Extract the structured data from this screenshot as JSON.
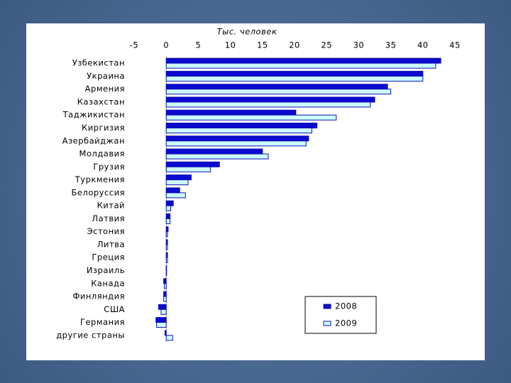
{
  "chart_data": {
    "type": "barh",
    "title": "Тыс. человек",
    "categories": [
      "Узбекистан",
      "Украина",
      "Армения",
      "Казахстан",
      "Таджикистан",
      "Киргизия",
      "Азербайджан",
      "Молдавия",
      "Грузия",
      "Туркмения",
      "Белоруссия",
      "Китай",
      "Латвия",
      "Эстония",
      "Литва",
      "Греция",
      "Израиль",
      "Канада",
      "Финляндия",
      "США",
      "Германия",
      "другие страны"
    ],
    "series": [
      {
        "name": "2008",
        "color": "#0a0ad0",
        "values": [
          42.8,
          40,
          34.5,
          32.5,
          20.2,
          23.5,
          22.2,
          15,
          8.3,
          3.9,
          2.1,
          1.1,
          0.6,
          0.3,
          0.2,
          0.2,
          0,
          -0.4,
          -0.4,
          -1.2,
          -1.6,
          -0.2
        ]
      },
      {
        "name": "2009",
        "color": "#ccffff",
        "values": [
          42,
          40,
          35,
          31.8,
          26.5,
          22.7,
          21.8,
          15.9,
          6.9,
          3.4,
          3,
          0.7,
          0.6,
          0.2,
          0.2,
          0.2,
          0,
          -0.3,
          -0.4,
          -0.8,
          -1.5,
          1
        ]
      }
    ],
    "xlim": [
      -5,
      45
    ],
    "xticks": [
      -5,
      0,
      5,
      10,
      15,
      20,
      25,
      30,
      35,
      40,
      45
    ],
    "grid": false,
    "legend": "lower right"
  }
}
